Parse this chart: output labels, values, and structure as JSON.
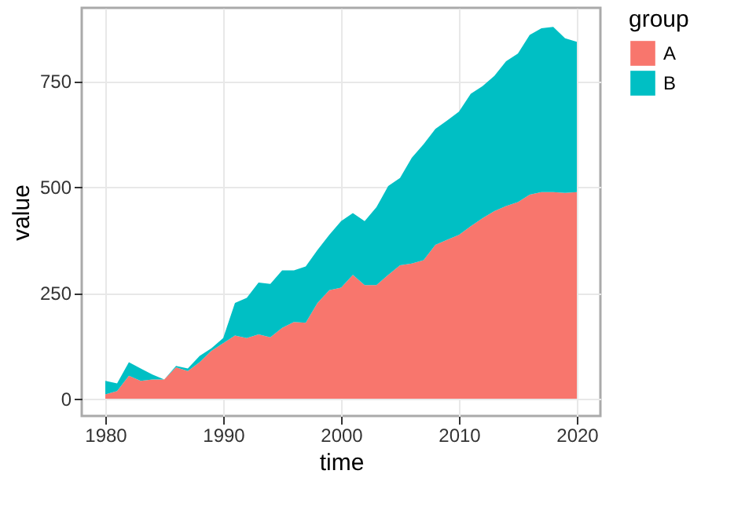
{
  "chart_data": {
    "type": "area",
    "stacked": true,
    "xlabel": "time",
    "ylabel": "value",
    "legend_title": "group",
    "legend": "right",
    "grid": true,
    "x": [
      1980,
      1981,
      1982,
      1983,
      1984,
      1985,
      1986,
      1987,
      1988,
      1989,
      1990,
      1991,
      1992,
      1993,
      1994,
      1995,
      1996,
      1997,
      1998,
      1999,
      2000,
      2001,
      2002,
      2003,
      2004,
      2005,
      2006,
      2007,
      2008,
      2009,
      2010,
      2011,
      2012,
      2013,
      2014,
      2015,
      2016,
      2017,
      2018,
      2019,
      2020
    ],
    "series": [
      {
        "name": "A",
        "color": "#f8766d",
        "values": [
          10,
          18,
          54,
          42,
          45,
          45,
          74,
          65,
          86,
          113,
          131,
          149,
          143,
          152,
          145,
          167,
          181,
          179,
          226,
          256,
          262,
          292,
          268,
          268,
          292,
          315,
          319,
          327,
          363,
          375,
          387,
          407,
          426,
          443,
          455,
          464,
          482,
          488,
          488,
          486,
          488
        ]
      },
      {
        "name": "B",
        "color": "#00bfc4",
        "values": [
          32,
          18,
          32,
          29,
          12,
          0,
          3,
          6,
          15,
          6,
          12,
          77,
          95,
          122,
          126,
          136,
          122,
          133,
          125,
          131,
          157,
          146,
          151,
          184,
          210,
          206,
          250,
          274,
          274,
          282,
          291,
          313,
          312,
          319,
          342,
          351,
          377,
          387,
          390,
          365,
          355
        ]
      }
    ],
    "xlim": [
      1978,
      2022
    ],
    "xticks": [
      1980,
      1990,
      2000,
      2010,
      2020
    ],
    "ylim": [
      -41,
      923
    ],
    "yticks": [
      0,
      250,
      500,
      750
    ]
  }
}
